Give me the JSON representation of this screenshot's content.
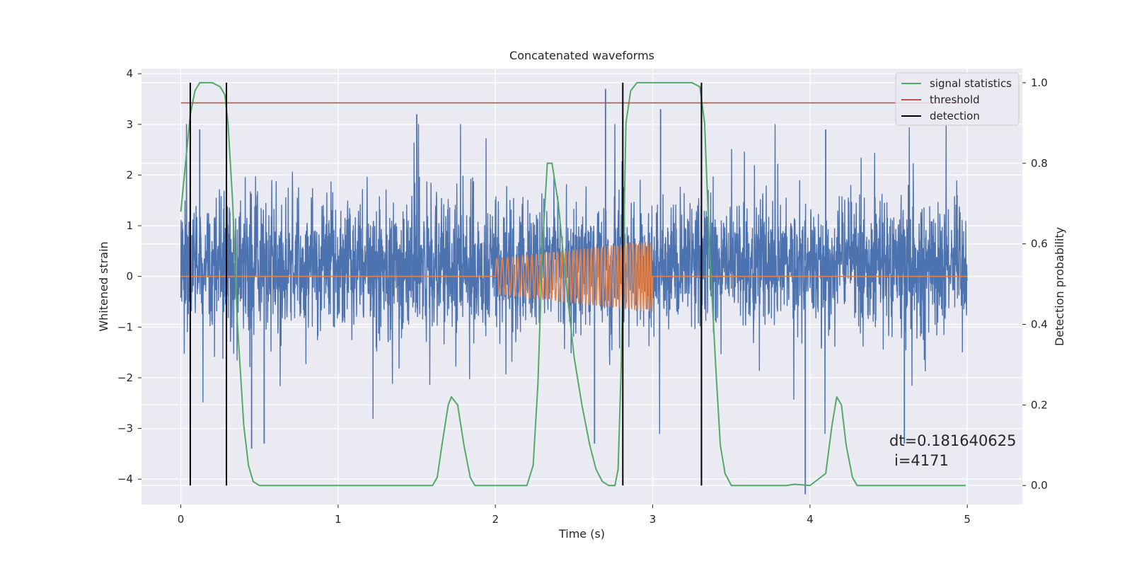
{
  "chart_data": {
    "type": "line",
    "title": "Concatenated waveforms",
    "xlabel": "Time (s)",
    "ylabel": "Whitened strain",
    "y2label": "Detection probability",
    "xlim": [
      -0.25,
      5.35
    ],
    "ylim": [
      -4.5,
      4.1
    ],
    "y2lim": [
      -0.047,
      1.035
    ],
    "xticks": [
      0,
      1,
      2,
      3,
      4,
      5
    ],
    "yticks": [
      -4,
      -3,
      -2,
      -1,
      0,
      1,
      2,
      3,
      4
    ],
    "y2ticks": [
      0.0,
      0.2,
      0.4,
      0.6,
      0.8,
      1.0
    ],
    "y2tick_labels": [
      "0.0",
      "0.2",
      "0.4",
      "0.6",
      "0.8",
      "1.0"
    ],
    "grid": true,
    "legend_position": "top-right",
    "legend": [
      {
        "label": "signal statistics",
        "color": "#55a868"
      },
      {
        "label": "threshold",
        "color": "#c44e52"
      },
      {
        "label": "detection",
        "color": "#000000"
      }
    ],
    "series": [
      {
        "kind": "whitened-strain-noise",
        "color": "#4c72b0",
        "axis": "left",
        "x_range": [
          0,
          5
        ],
        "typical_band": [
          -1.3,
          1.8
        ],
        "peaks_upper": [
          [
            0.12,
            2.9
          ],
          [
            1.5,
            3.2
          ],
          [
            2.7,
            3.7
          ],
          [
            3.05,
            3.3
          ],
          [
            4.1,
            2.9
          ]
        ],
        "peaks_lower": [
          [
            0.45,
            -3.4
          ],
          [
            0.53,
            -3.3
          ],
          [
            2.63,
            -3.3
          ],
          [
            3.97,
            -4.3
          ],
          [
            4.6,
            -3.3
          ]
        ]
      },
      {
        "kind": "injected-waveform",
        "color": "#dd8452",
        "axis": "left",
        "x_range": [
          0,
          5
        ],
        "chirp_start": 2.0,
        "chirp_end": 3.0,
        "amplitude_start": 0.35,
        "amplitude_end": 0.7
      },
      {
        "name": "signal statistics",
        "color": "#55a868",
        "axis": "right",
        "x": [
          0.0,
          0.03,
          0.06,
          0.09,
          0.12,
          0.15,
          0.2,
          0.25,
          0.28,
          0.3,
          0.33,
          0.36,
          0.4,
          0.43,
          0.46,
          0.5,
          1.6,
          1.63,
          1.66,
          1.7,
          1.72,
          1.76,
          1.8,
          1.84,
          1.87,
          1.9,
          2.2,
          2.24,
          2.27,
          2.3,
          2.33,
          2.36,
          2.4,
          2.45,
          2.5,
          2.55,
          2.6,
          2.64,
          2.68,
          2.72,
          2.76,
          2.78,
          2.8,
          2.83,
          2.86,
          2.9,
          3.0,
          3.25,
          3.3,
          3.33,
          3.36,
          3.4,
          3.43,
          3.46,
          3.5,
          3.85,
          3.9,
          4.0,
          4.1,
          4.14,
          4.17,
          4.2,
          4.23,
          4.27,
          4.3,
          4.35,
          4.99
        ],
        "y": [
          0.68,
          0.8,
          0.92,
          0.98,
          1.0,
          1.0,
          1.0,
          0.99,
          0.97,
          0.9,
          0.7,
          0.4,
          0.15,
          0.05,
          0.01,
          0.0,
          0.0,
          0.02,
          0.1,
          0.2,
          0.22,
          0.2,
          0.1,
          0.02,
          0.0,
          0.0,
          0.0,
          0.05,
          0.25,
          0.6,
          0.8,
          0.8,
          0.7,
          0.5,
          0.32,
          0.2,
          0.1,
          0.04,
          0.01,
          0.0,
          0.0,
          0.04,
          0.3,
          0.9,
          0.98,
          1.0,
          1.0,
          1.0,
          0.99,
          0.9,
          0.6,
          0.3,
          0.1,
          0.03,
          0.0,
          0.0,
          0.003,
          0.0,
          0.03,
          0.15,
          0.22,
          0.2,
          0.1,
          0.02,
          0.0,
          0.0,
          0.0
        ]
      },
      {
        "name": "threshold",
        "color": "#c44e52",
        "axis": "right",
        "x": [
          0,
          5
        ],
        "y": [
          0.95,
          0.95
        ]
      },
      {
        "name": "detection",
        "color": "#000000",
        "axis": "right",
        "vlines": [
          0.06,
          0.29,
          2.81,
          3.31
        ],
        "y_range": [
          0.0,
          1.0
        ]
      }
    ],
    "annotations": [
      "dt=0.181640625",
      "i=4171"
    ]
  }
}
